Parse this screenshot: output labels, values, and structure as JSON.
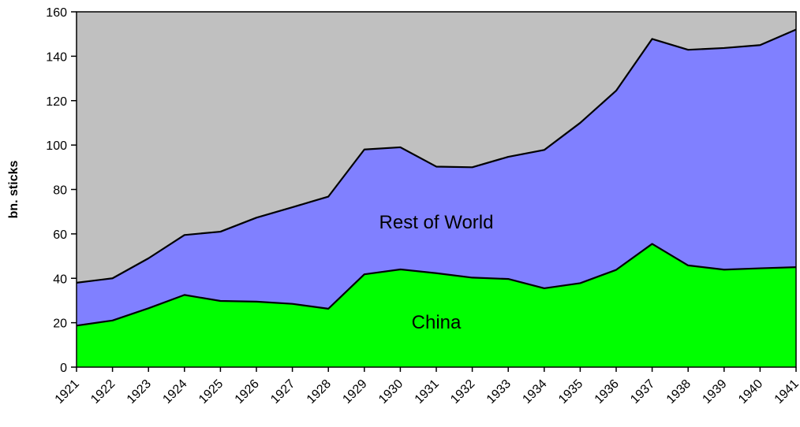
{
  "chart_data": {
    "type": "area",
    "title": "",
    "xlabel": "",
    "ylabel": "bn. sticks",
    "ylim": [
      0,
      160
    ],
    "yticks": [
      "0",
      "20",
      "40",
      "60",
      "80",
      "100",
      "120",
      "140",
      "160"
    ],
    "categories": [
      "1921",
      "1922",
      "1923",
      "1924",
      "1925",
      "1926",
      "1927",
      "1928",
      "1929",
      "1930",
      "1931",
      "1932",
      "1933",
      "1934",
      "1935",
      "1936",
      "1937",
      "1938",
      "1939",
      "1940",
      "1941"
    ],
    "stacked": true,
    "grid": false,
    "background_color": "#c0c0c0",
    "series": [
      {
        "name": "China",
        "color": "#00ff00",
        "values": [
          18.7,
          21.0,
          26.5,
          32.5,
          29.8,
          29.5,
          28.5,
          26.3,
          41.8,
          44.0,
          42.3,
          40.3,
          39.7,
          35.5,
          37.8,
          43.8,
          55.5,
          45.8,
          43.9,
          44.5,
          45.0
        ]
      },
      {
        "name": "Rest of World",
        "color": "#8080ff",
        "values": [
          19.3,
          19.0,
          22.5,
          27.0,
          31.2,
          37.8,
          43.5,
          50.5,
          56.2,
          55.0,
          48.0,
          49.7,
          55.0,
          62.3,
          72.2,
          80.7,
          92.3,
          97.1,
          99.8,
          100.5,
          107.0
        ]
      }
    ]
  }
}
